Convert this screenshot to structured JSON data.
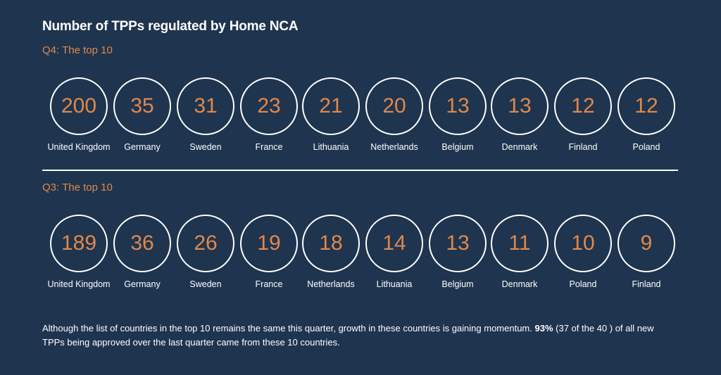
{
  "title": "Number of TPPs regulated by Home NCA",
  "colors": {
    "background": "#1f344e",
    "accent": "#e0884c",
    "text": "#ffffff"
  },
  "chart_data": [
    {
      "type": "table",
      "title": "Q4:  The top 10",
      "categories": [
        "United Kingdom",
        "Germany",
        "Sweden",
        "France",
        "Lithuania",
        "Netherlands",
        "Belgium",
        "Denmark",
        "Finland",
        "Poland"
      ],
      "values": [
        200,
        35,
        31,
        23,
        21,
        20,
        13,
        13,
        12,
        12
      ]
    },
    {
      "type": "table",
      "title": "Q3:  The top 10",
      "categories": [
        "United Kingdom",
        "Germany",
        "Sweden",
        "France",
        "Netherlands",
        "Lithuania",
        "Belgium",
        "Denmark",
        "Poland",
        "Finland"
      ],
      "values": [
        189,
        36,
        26,
        19,
        18,
        14,
        13,
        11,
        10,
        9
      ]
    }
  ],
  "note": {
    "text_before": "Although the list of countries in the top 10 remains the same this quarter, growth in these countries is gaining momentum. ",
    "highlight": "93%",
    "text_after": " (37 of the 40 ) of all new TPPs being approved over the last quarter came from these 10 countries."
  }
}
